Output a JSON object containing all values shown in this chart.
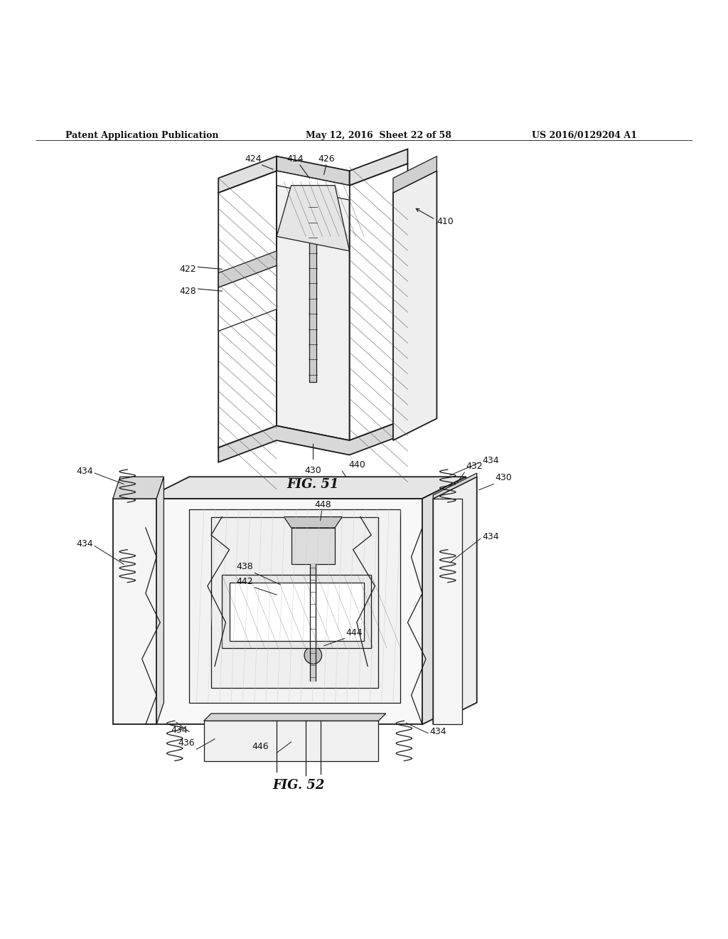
{
  "bg_color": "#ffffff",
  "header_text": "Patent Application Publication",
  "header_date": "May 12, 2016  Sheet 22 of 58",
  "header_patent": "US 2016/0129204 A1",
  "fig51_label": "FIG. 51",
  "fig52_label": "FIG. 52",
  "line_color": "#1a1a1a",
  "hatch_color": "#555555",
  "lw_main": 1.3,
  "lw_thin": 0.9
}
